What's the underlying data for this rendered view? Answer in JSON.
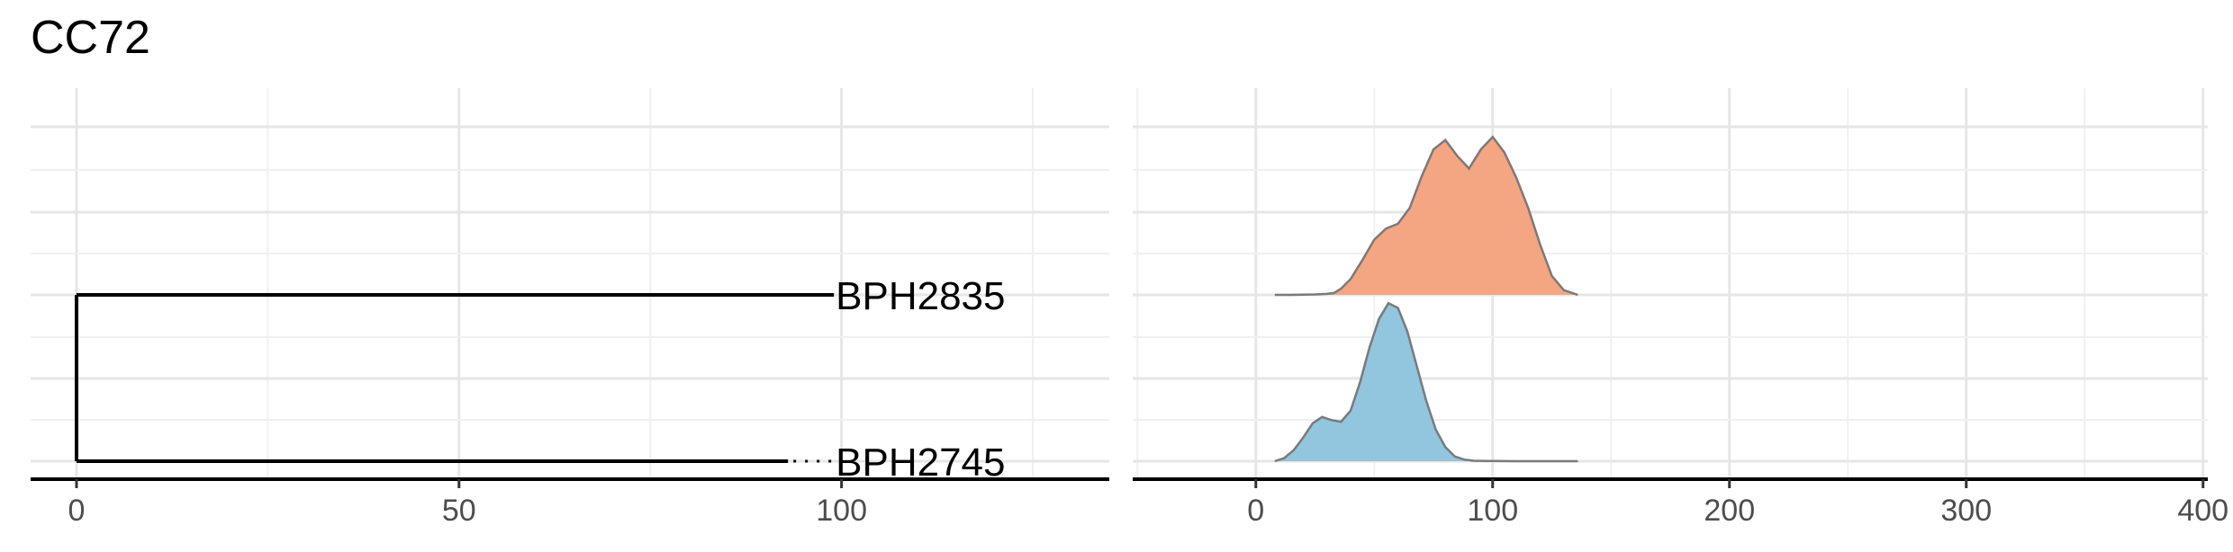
{
  "title": "CC72",
  "chart_data": [
    {
      "type": "dendrogram",
      "xlim": [
        -6,
        135
      ],
      "xticks": [
        0,
        50,
        100
      ],
      "grid": true,
      "tips": [
        {
          "label": "BPH2835",
          "x": 99,
          "row": 1
        },
        {
          "label": "BPH2745",
          "x": 93,
          "row": 0,
          "dotted_to": 99
        }
      ],
      "root_x": 0
    },
    {
      "type": "ridgeline",
      "xlim": [
        -52,
        402
      ],
      "xticks": [
        0,
        100,
        200,
        300,
        400
      ],
      "grid": true,
      "x_extent": [
        8,
        136
      ],
      "series": [
        {
          "row": 1,
          "color": "#f4a582",
          "x": [
            8,
            15,
            20,
            25,
            30,
            33,
            36,
            40,
            45,
            50,
            55,
            60,
            65,
            70,
            75,
            80,
            85,
            90,
            95,
            100,
            105,
            110,
            115,
            120,
            125,
            130,
            136
          ],
          "y": [
            0,
            0,
            0.001,
            0.003,
            0.006,
            0.012,
            0.04,
            0.1,
            0.22,
            0.35,
            0.42,
            0.45,
            0.55,
            0.75,
            0.92,
            0.98,
            0.88,
            0.8,
            0.92,
            1.0,
            0.9,
            0.74,
            0.55,
            0.32,
            0.12,
            0.03,
            0.0
          ]
        },
        {
          "row": 0,
          "color": "#92c5de",
          "x": [
            8,
            12,
            16,
            20,
            24,
            28,
            32,
            36,
            40,
            44,
            48,
            52,
            56,
            60,
            64,
            68,
            72,
            76,
            80,
            84,
            88,
            92,
            100,
            110,
            120,
            136
          ],
          "y": [
            0,
            0.02,
            0.07,
            0.15,
            0.24,
            0.28,
            0.26,
            0.25,
            0.32,
            0.5,
            0.72,
            0.9,
            1.0,
            0.97,
            0.82,
            0.6,
            0.38,
            0.2,
            0.09,
            0.03,
            0.01,
            0.003,
            0.001,
            0,
            0,
            0
          ]
        }
      ]
    }
  ]
}
